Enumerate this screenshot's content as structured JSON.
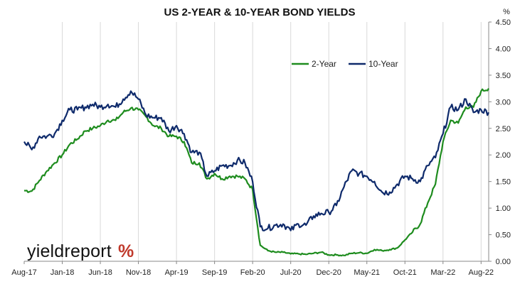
{
  "chart_data": {
    "type": "line",
    "title": "US 2-YEAR & 10-YEAR BOND YIELDS",
    "ylabel": "%",
    "xlabel": "",
    "ylim": [
      0,
      4.5
    ],
    "xlim": [
      "2017-08",
      "2022-09"
    ],
    "y_ticks": [
      "0.00",
      "0.50",
      "1.00",
      "1.50",
      "2.00",
      "2.50",
      "3.00",
      "3.50",
      "4.00",
      "4.50"
    ],
    "x_ticks": [
      "Aug-17",
      "Jan-18",
      "Jun-18",
      "Nov-18",
      "Apr-19",
      "Sep-19",
      "Feb-20",
      "Jul-20",
      "Dec-20",
      "May-21",
      "Oct-21",
      "Mar-22",
      "Aug-22"
    ],
    "grid": "vertical",
    "legend_position": "top-center",
    "series": [
      {
        "name": "2-Year",
        "color": "#1e8c1e",
        "x": [
          "2017-08",
          "2017-09",
          "2017-10",
          "2017-11",
          "2017-12",
          "2018-01",
          "2018-02",
          "2018-03",
          "2018-04",
          "2018-05",
          "2018-06",
          "2018-07",
          "2018-08",
          "2018-09",
          "2018-10",
          "2018-11",
          "2018-12",
          "2019-01",
          "2019-02",
          "2019-03",
          "2019-04",
          "2019-05",
          "2019-06",
          "2019-07",
          "2019-08",
          "2019-09",
          "2019-10",
          "2019-11",
          "2019-12",
          "2020-01",
          "2020-02",
          "2020-03",
          "2020-04",
          "2020-05",
          "2020-06",
          "2020-07",
          "2020-08",
          "2020-09",
          "2020-10",
          "2020-11",
          "2020-12",
          "2021-01",
          "2021-02",
          "2021-03",
          "2021-04",
          "2021-05",
          "2021-06",
          "2021-07",
          "2021-08",
          "2021-09",
          "2021-10",
          "2021-11",
          "2021-12",
          "2022-01",
          "2022-02",
          "2022-03",
          "2022-04",
          "2022-05",
          "2022-06",
          "2022-07",
          "2022-08",
          "2022-09"
        ],
        "values": [
          1.33,
          1.32,
          1.52,
          1.7,
          1.85,
          2.0,
          2.2,
          2.3,
          2.45,
          2.5,
          2.55,
          2.65,
          2.65,
          2.8,
          2.88,
          2.85,
          2.72,
          2.55,
          2.5,
          2.35,
          2.35,
          2.25,
          1.85,
          1.85,
          1.55,
          1.65,
          1.55,
          1.6,
          1.6,
          1.55,
          1.35,
          0.3,
          0.2,
          0.17,
          0.17,
          0.14,
          0.14,
          0.13,
          0.15,
          0.17,
          0.12,
          0.12,
          0.11,
          0.15,
          0.16,
          0.15,
          0.22,
          0.2,
          0.22,
          0.25,
          0.4,
          0.55,
          0.7,
          1.1,
          1.45,
          2.25,
          2.65,
          2.6,
          2.9,
          2.9,
          3.2,
          3.25
        ]
      },
      {
        "name": "10-Year",
        "color": "#0e2a6b",
        "x": [
          "2017-08",
          "2017-09",
          "2017-10",
          "2017-11",
          "2017-12",
          "2018-01",
          "2018-02",
          "2018-03",
          "2018-04",
          "2018-05",
          "2018-06",
          "2018-07",
          "2018-08",
          "2018-09",
          "2018-10",
          "2018-11",
          "2018-12",
          "2019-01",
          "2019-02",
          "2019-03",
          "2019-04",
          "2019-05",
          "2019-06",
          "2019-07",
          "2019-08",
          "2019-09",
          "2019-10",
          "2019-11",
          "2019-12",
          "2020-01",
          "2020-02",
          "2020-03",
          "2020-04",
          "2020-05",
          "2020-06",
          "2020-07",
          "2020-08",
          "2020-09",
          "2020-10",
          "2020-11",
          "2020-12",
          "2021-01",
          "2021-02",
          "2021-03",
          "2021-04",
          "2021-05",
          "2021-06",
          "2021-07",
          "2021-08",
          "2021-09",
          "2021-10",
          "2021-11",
          "2021-12",
          "2022-01",
          "2022-02",
          "2022-03",
          "2022-04",
          "2022-05",
          "2022-06",
          "2022-07",
          "2022-08",
          "2022-09"
        ],
        "values": [
          2.25,
          2.1,
          2.35,
          2.35,
          2.4,
          2.65,
          2.85,
          2.85,
          2.9,
          2.95,
          2.9,
          2.95,
          2.9,
          3.05,
          3.2,
          3.05,
          2.75,
          2.7,
          2.7,
          2.45,
          2.55,
          2.4,
          2.05,
          2.05,
          1.6,
          1.7,
          1.8,
          1.8,
          1.9,
          1.85,
          1.5,
          0.65,
          0.62,
          0.68,
          0.7,
          0.58,
          0.7,
          0.68,
          0.85,
          0.9,
          0.92,
          1.05,
          1.4,
          1.7,
          1.65,
          1.6,
          1.5,
          1.3,
          1.3,
          1.45,
          1.6,
          1.55,
          1.5,
          1.8,
          1.95,
          2.4,
          2.9,
          2.85,
          3.05,
          2.8,
          2.85,
          2.8
        ]
      }
    ]
  },
  "branding": {
    "logo_text": "yieldreport",
    "logo_symbol": "%"
  }
}
